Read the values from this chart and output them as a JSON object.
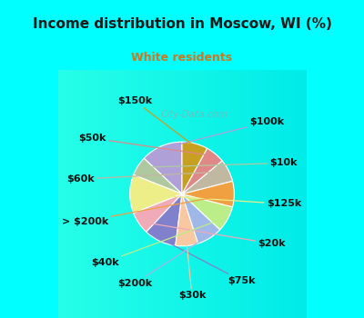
{
  "title": "Income distribution in Moscow, WI (%)",
  "subtitle": "White residents",
  "title_color": "#1a1a1a",
  "subtitle_color": "#cc7722",
  "bg_cyan": "#00ffff",
  "labels": [
    "$100k",
    "$10k",
    "$125k",
    "$20k",
    "$75k",
    "$30k",
    "$200k",
    "$40k",
    "> $200k",
    "$60k",
    "$50k",
    "$150k"
  ],
  "values": [
    13,
    6,
    12,
    7,
    10,
    7,
    8,
    8,
    8,
    7,
    6,
    8
  ],
  "colors": [
    "#b0a0d8",
    "#b0c8a0",
    "#eeee88",
    "#f0aab8",
    "#8080cc",
    "#f8c8a0",
    "#a0b8e8",
    "#bbee88",
    "#f0a040",
    "#c0b8a0",
    "#e08888",
    "#c8a020"
  ],
  "label_fontsize": 8,
  "startangle": 90,
  "pct_distance": 0.75,
  "figsize": [
    4.0,
    3.5
  ],
  "dpi": 100,
  "watermark": "City-Data.com",
  "chart_bg_left": "#d4ede0",
  "chart_bg_right": "#e8f8f0"
}
